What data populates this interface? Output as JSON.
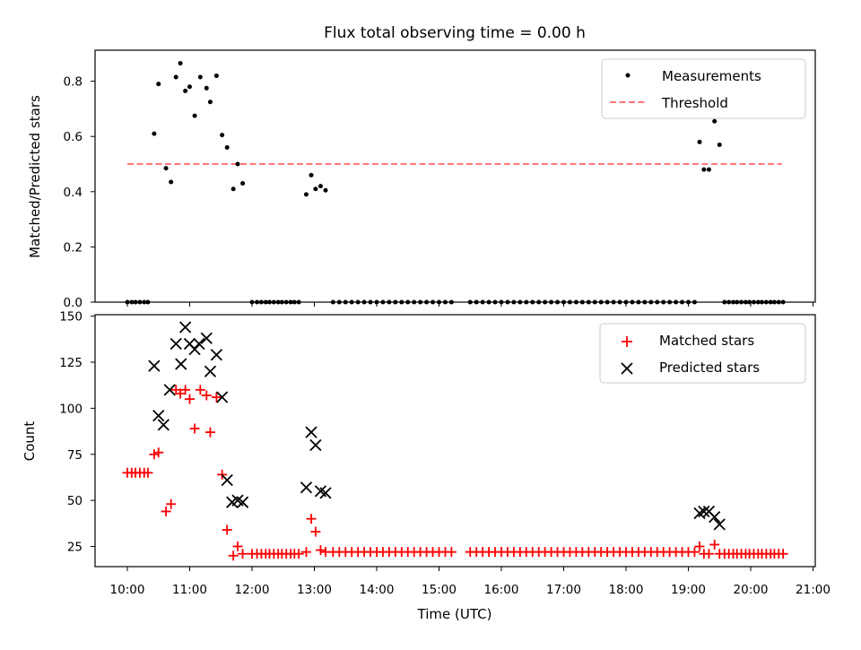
{
  "title": "Flux total observing time = 0.00 h",
  "colors": {
    "threshold": "#ff7777",
    "matched": "#ff0000",
    "predicted": "#000000",
    "measurements": "#000000"
  },
  "chart_data": [
    {
      "type": "scatter",
      "ylabel": "Matched/Predicted stars",
      "xlabel": "",
      "ylim": [
        0,
        0.91
      ],
      "yticks": [
        "0.0",
        "0.2",
        "0.4",
        "0.6",
        "0.8"
      ],
      "legend_position": "top-right",
      "series": [
        {
          "name": "Measurements",
          "marker": "dot",
          "points": [
            [
              10.0,
              0.0
            ],
            [
              10.07,
              0.0
            ],
            [
              10.13,
              0.0
            ],
            [
              10.2,
              0.0
            ],
            [
              10.27,
              0.0
            ],
            [
              10.33,
              0.0
            ],
            [
              10.43,
              0.61
            ],
            [
              10.5,
              0.79
            ],
            [
              10.62,
              0.485
            ],
            [
              10.7,
              0.435
            ],
            [
              10.78,
              0.815
            ],
            [
              10.85,
              0.865
            ],
            [
              10.93,
              0.765
            ],
            [
              11.0,
              0.78
            ],
            [
              11.08,
              0.675
            ],
            [
              11.17,
              0.815
            ],
            [
              11.27,
              0.775
            ],
            [
              11.33,
              0.725
            ],
            [
              11.43,
              0.82
            ],
            [
              11.52,
              0.605
            ],
            [
              11.6,
              0.56
            ],
            [
              11.7,
              0.41
            ],
            [
              11.77,
              0.5
            ],
            [
              11.85,
              0.43
            ],
            [
              12.0,
              0.0
            ],
            [
              12.08,
              0.0
            ],
            [
              12.15,
              0.0
            ],
            [
              12.22,
              0.0
            ],
            [
              12.28,
              0.0
            ],
            [
              12.35,
              0.0
            ],
            [
              12.42,
              0.0
            ],
            [
              12.48,
              0.0
            ],
            [
              12.55,
              0.0
            ],
            [
              12.62,
              0.0
            ],
            [
              12.68,
              0.0
            ],
            [
              12.75,
              0.0
            ],
            [
              12.87,
              0.39
            ],
            [
              12.95,
              0.46
            ],
            [
              13.02,
              0.41
            ],
            [
              13.1,
              0.42
            ],
            [
              13.18,
              0.405
            ],
            [
              19.18,
              0.58
            ],
            [
              19.25,
              0.48
            ],
            [
              19.33,
              0.48
            ],
            [
              19.42,
              0.655
            ],
            [
              19.5,
              0.57
            ],
            [
              19.58,
              0.0
            ],
            [
              19.65,
              0.0
            ],
            [
              19.72,
              0.0
            ],
            [
              19.78,
              0.0
            ],
            [
              19.85,
              0.0
            ],
            [
              19.92,
              0.0
            ],
            [
              19.98,
              0.0
            ],
            [
              20.05,
              0.0
            ],
            [
              20.12,
              0.0
            ],
            [
              20.18,
              0.0
            ],
            [
              20.25,
              0.0
            ],
            [
              20.32,
              0.0
            ],
            [
              20.38,
              0.0
            ],
            [
              20.45,
              0.0
            ],
            [
              20.52,
              0.0
            ]
          ],
          "zero_run": {
            "from": 13.3,
            "to": 19.1,
            "step": 0.1,
            "value": 0.0,
            "gap": [
              15.25,
              15.45
            ]
          }
        },
        {
          "name": "Threshold",
          "style": "dashed",
          "x": [
            10.0,
            20.5
          ],
          "y": [
            0.5,
            0.5
          ]
        }
      ]
    },
    {
      "type": "scatter",
      "ylabel": "Count",
      "xlabel": "Time (UTC)",
      "ylim": [
        13,
        151
      ],
      "yticks": [
        "25",
        "50",
        "75",
        "100",
        "125",
        "150"
      ],
      "xlim": [
        9.5,
        21.0
      ],
      "xticks": [
        "10:00",
        "11:00",
        "12:00",
        "13:00",
        "14:00",
        "15:00",
        "16:00",
        "17:00",
        "18:00",
        "19:00",
        "20:00",
        "21:00"
      ],
      "legend_position": "top-right",
      "series": [
        {
          "name": "Matched stars",
          "marker": "plus",
          "points": [
            [
              10.0,
              65
            ],
            [
              10.07,
              65
            ],
            [
              10.13,
              65
            ],
            [
              10.2,
              65
            ],
            [
              10.27,
              65
            ],
            [
              10.33,
              65
            ],
            [
              10.43,
              75
            ],
            [
              10.5,
              76
            ],
            [
              10.62,
              44
            ],
            [
              10.7,
              48
            ],
            [
              10.78,
              110
            ],
            [
              10.85,
              108
            ],
            [
              10.93,
              110
            ],
            [
              11.0,
              105
            ],
            [
              11.08,
              89
            ],
            [
              11.17,
              110
            ],
            [
              11.27,
              107
            ],
            [
              11.33,
              87
            ],
            [
              11.43,
              106
            ],
            [
              11.52,
              64
            ],
            [
              11.6,
              34
            ],
            [
              11.7,
              20
            ],
            [
              11.77,
              25
            ],
            [
              11.85,
              21
            ],
            [
              12.0,
              21
            ],
            [
              12.08,
              21
            ],
            [
              12.15,
              21
            ],
            [
              12.22,
              21
            ],
            [
              12.28,
              21
            ],
            [
              12.35,
              21
            ],
            [
              12.42,
              21
            ],
            [
              12.48,
              21
            ],
            [
              12.55,
              21
            ],
            [
              12.62,
              21
            ],
            [
              12.68,
              21
            ],
            [
              12.75,
              21
            ],
            [
              12.87,
              22
            ],
            [
              12.95,
              40
            ],
            [
              13.02,
              33
            ],
            [
              13.1,
              23
            ],
            [
              13.18,
              22
            ],
            [
              19.18,
              25
            ],
            [
              19.25,
              21
            ],
            [
              19.33,
              21
            ],
            [
              19.42,
              26
            ],
            [
              19.5,
              21
            ],
            [
              19.58,
              21
            ],
            [
              19.65,
              21
            ],
            [
              19.72,
              21
            ],
            [
              19.78,
              21
            ],
            [
              19.85,
              21
            ],
            [
              19.92,
              21
            ],
            [
              19.98,
              21
            ],
            [
              20.05,
              21
            ],
            [
              20.12,
              21
            ],
            [
              20.18,
              21
            ],
            [
              20.25,
              21
            ],
            [
              20.32,
              21
            ],
            [
              20.38,
              21
            ],
            [
              20.45,
              21
            ],
            [
              20.52,
              21
            ]
          ],
          "zero_run": {
            "from": 13.3,
            "to": 19.1,
            "step": 0.1,
            "value": 22,
            "gap": [
              15.25,
              15.45
            ]
          }
        },
        {
          "name": "Predicted stars",
          "marker": "x",
          "points": [
            [
              10.43,
              123
            ],
            [
              10.5,
              96
            ],
            [
              10.58,
              91
            ],
            [
              10.68,
              110
            ],
            [
              10.78,
              135
            ],
            [
              10.86,
              124
            ],
            [
              10.93,
              144
            ],
            [
              11.0,
              135
            ],
            [
              11.08,
              132
            ],
            [
              11.15,
              135
            ],
            [
              11.27,
              138
            ],
            [
              11.33,
              120
            ],
            [
              11.43,
              129
            ],
            [
              11.52,
              106
            ],
            [
              11.6,
              61
            ],
            [
              11.68,
              49
            ],
            [
              11.77,
              50
            ],
            [
              11.85,
              49
            ],
            [
              12.87,
              57
            ],
            [
              12.95,
              87
            ],
            [
              13.02,
              80
            ],
            [
              13.1,
              55
            ],
            [
              13.18,
              54
            ],
            [
              19.18,
              43
            ],
            [
              19.25,
              44
            ],
            [
              19.33,
              44
            ],
            [
              19.42,
              41
            ],
            [
              19.5,
              37
            ]
          ]
        }
      ]
    }
  ]
}
